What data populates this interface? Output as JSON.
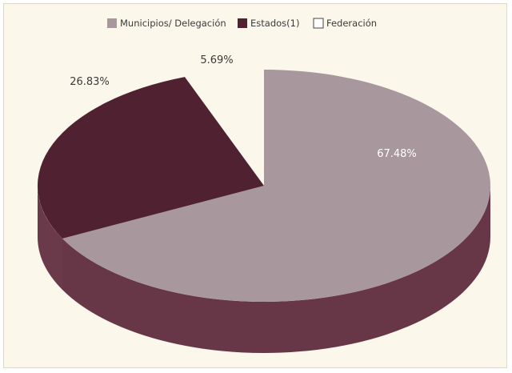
{
  "colors": {
    "background": "#fbf7ea",
    "municipios_top": "#a8979d",
    "municipios_side": "#673747",
    "estados_top": "#502231",
    "estados_side": "#6b3a4a",
    "federacion": "#ffffff",
    "label_light": "#ffffff",
    "label_dark": "#3a3a3a"
  },
  "chart_data": {
    "type": "pie",
    "title": "",
    "series": [
      {
        "name": "Municipios/ Delegación",
        "value": 67.48,
        "label": "67.48%"
      },
      {
        "name": "Estados(1)",
        "value": 26.83,
        "label": "26.83%"
      },
      {
        "name": "Federación",
        "value": 5.69,
        "label": "5.69%"
      }
    ],
    "legend_position": "top-center",
    "style": "3d"
  }
}
